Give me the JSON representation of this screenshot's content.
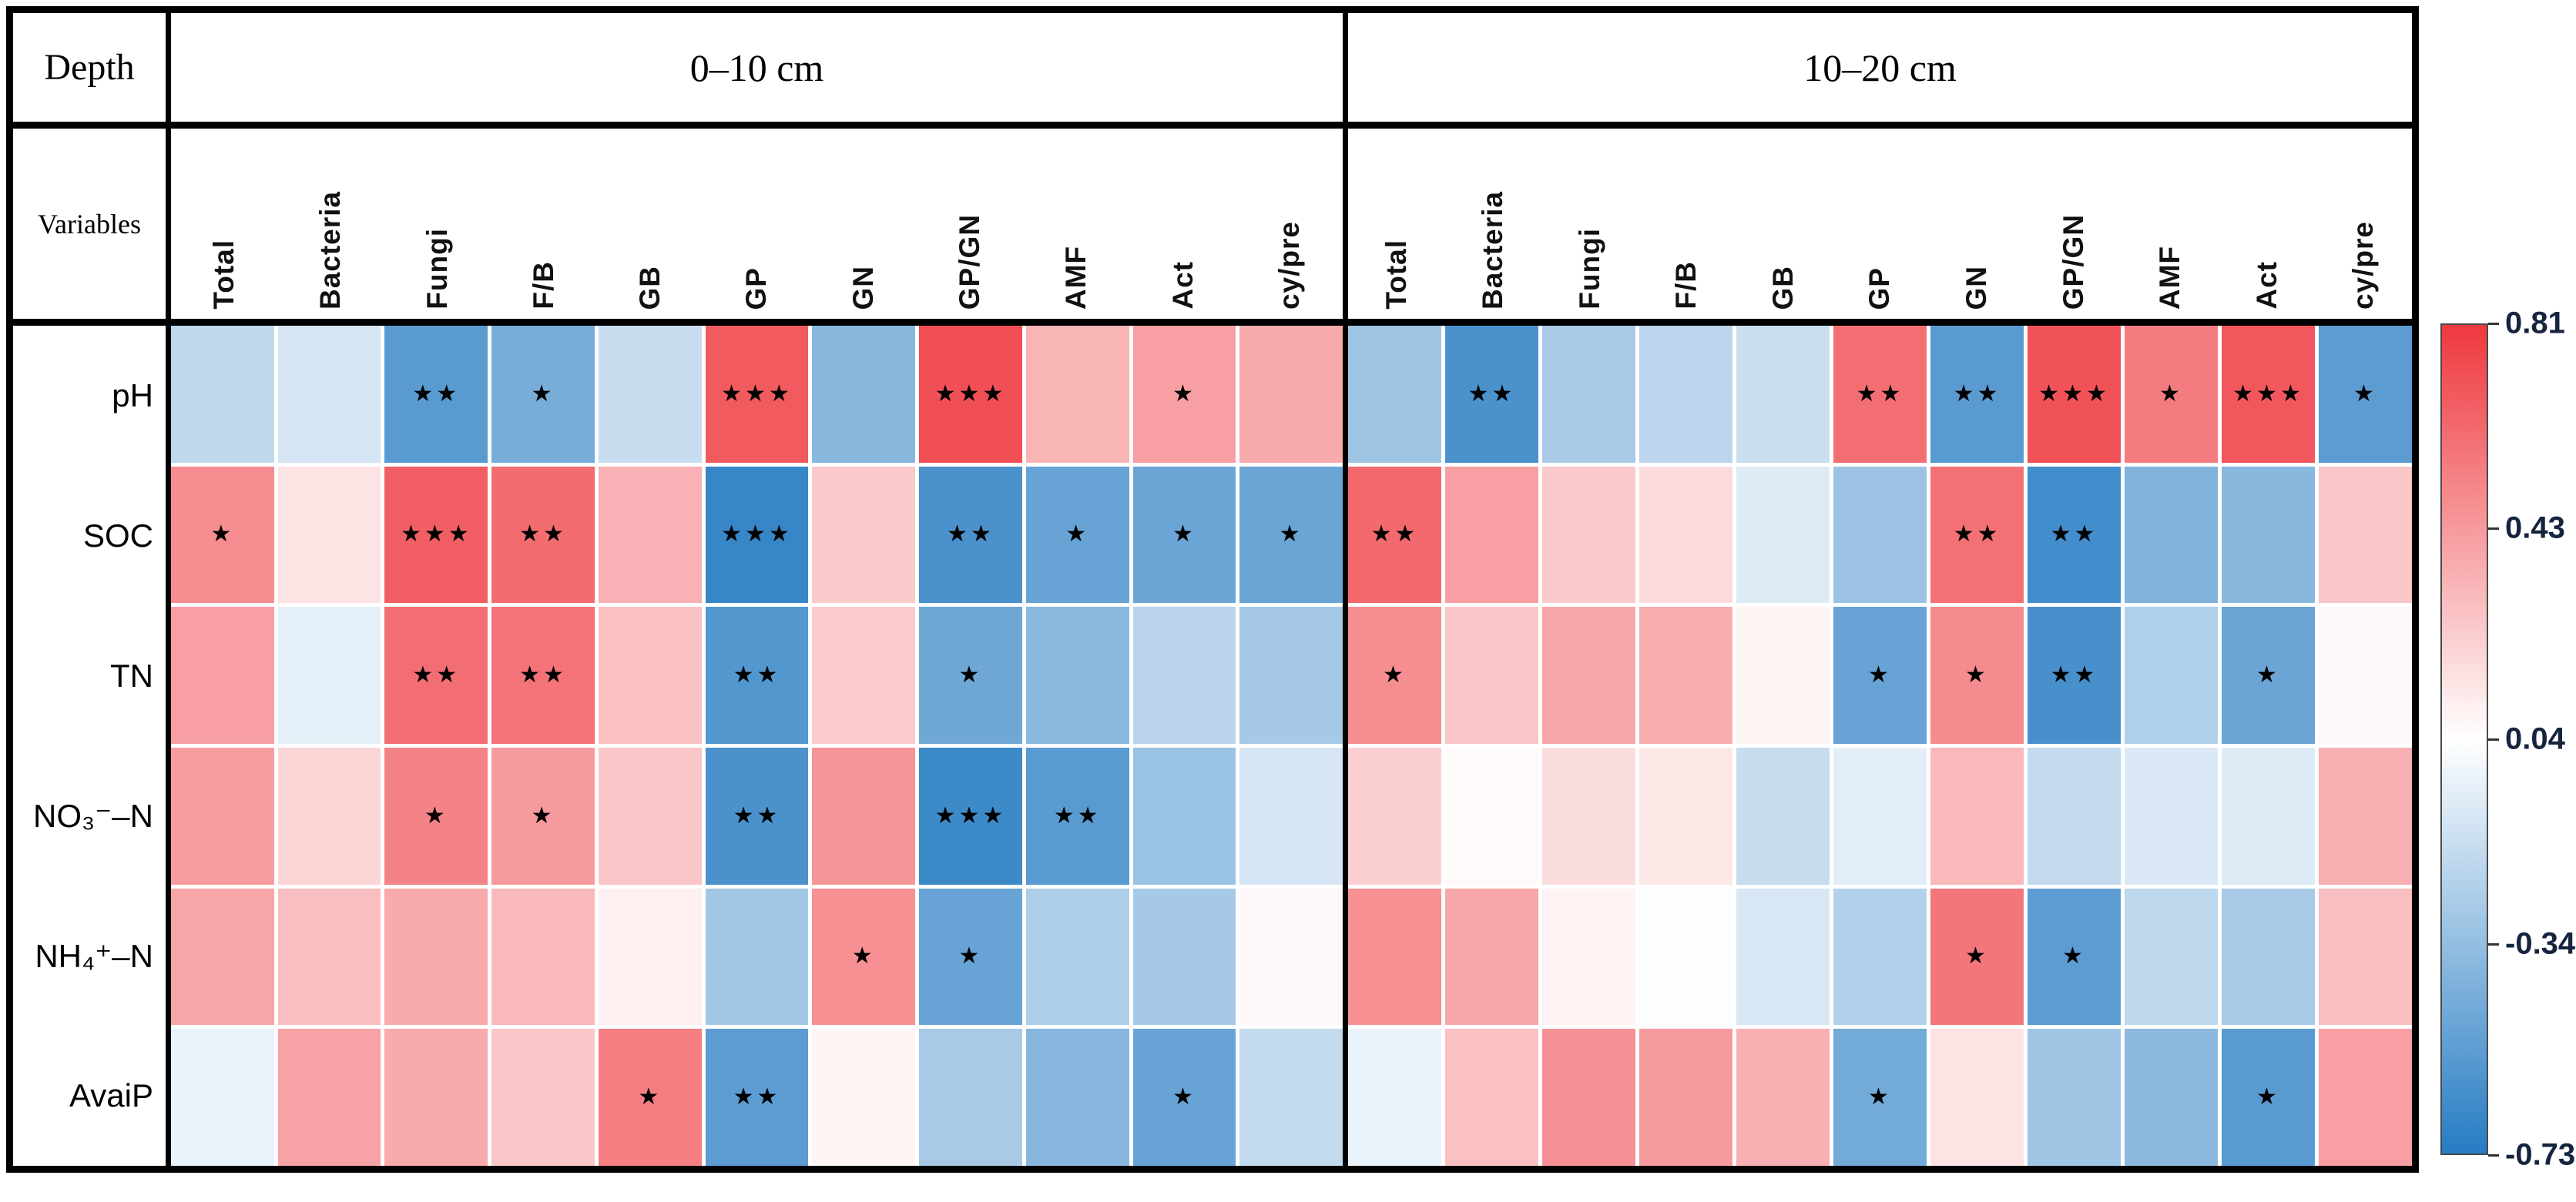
{
  "figure": {
    "depth_label": "Depth",
    "variables_label": "Variables",
    "star_glyph": "★"
  },
  "colorbar": {
    "ticks": [
      "0.81",
      "0.43",
      "0.04",
      "-0.34",
      "-0.73"
    ],
    "tick_values": [
      0.81,
      0.43,
      0.04,
      -0.34,
      -0.73
    ],
    "max": 0.81,
    "mid": 0.04,
    "min": -0.73,
    "max_color": "#EE383E",
    "mid_color": "#FFFFFF",
    "min_color": "#267CC3"
  },
  "chart_data": {
    "type": "heatmap",
    "title": "",
    "columns": [
      "Total",
      "Bacteria",
      "Fungi",
      "F/B",
      "GB",
      "GP",
      "GN",
      "GP/GN",
      "AMF",
      "Act",
      "cy/pre"
    ],
    "rows": [
      "pH",
      "SOC",
      "TN",
      "NO₃⁻–N",
      "NH₄⁺–N",
      "AvaiP"
    ],
    "value_range": [
      -0.73,
      0.81
    ],
    "panels": [
      {
        "name": "0–10 cm",
        "values": [
          [
            -0.19,
            -0.11,
            -0.55,
            -0.44,
            -0.16,
            0.68,
            -0.38,
            0.72,
            0.33,
            0.41,
            0.37
          ],
          [
            0.48,
            0.15,
            0.66,
            0.61,
            0.34,
            -0.67,
            0.25,
            -0.6,
            -0.5,
            -0.49,
            -0.49
          ],
          [
            0.41,
            -0.05,
            0.6,
            0.58,
            0.28,
            -0.57,
            0.24,
            -0.47,
            -0.37,
            -0.21,
            -0.28
          ],
          [
            0.42,
            0.2,
            0.52,
            0.43,
            0.26,
            -0.6,
            0.45,
            -0.65,
            -0.55,
            -0.32,
            -0.11
          ],
          [
            0.39,
            0.29,
            0.37,
            0.31,
            0.1,
            -0.29,
            0.47,
            -0.5,
            -0.25,
            -0.28,
            0.07
          ],
          [
            -0.03,
            0.4,
            0.37,
            0.26,
            0.54,
            -0.54,
            0.08,
            -0.27,
            -0.39,
            -0.5,
            -0.18
          ]
        ],
        "stars": [
          [
            "",
            "",
            "**",
            "*",
            "",
            "***",
            "",
            "***",
            "",
            "*",
            ""
          ],
          [
            "*",
            "",
            "***",
            "**",
            "",
            "***",
            "",
            "**",
            "*",
            "*",
            "*"
          ],
          [
            "",
            "",
            "**",
            "**",
            "",
            "**",
            "",
            "*",
            "",
            "",
            ""
          ],
          [
            "",
            "",
            "*",
            "*",
            "",
            "**",
            "",
            "***",
            "**",
            "",
            ""
          ],
          [
            "",
            "",
            "",
            "",
            "",
            "",
            "*",
            "*",
            "",
            "",
            ""
          ],
          [
            "",
            "",
            "",
            "",
            "*",
            "**",
            "",
            "",
            "",
            "*",
            ""
          ]
        ]
      },
      {
        "name": "10–20 cm",
        "values": [
          [
            -0.3,
            -0.6,
            -0.27,
            -0.2,
            -0.15,
            0.6,
            -0.55,
            0.71,
            0.55,
            0.69,
            -0.54
          ],
          [
            0.62,
            0.41,
            0.25,
            0.18,
            -0.08,
            -0.31,
            0.59,
            -0.63,
            -0.41,
            -0.38,
            0.26
          ],
          [
            0.48,
            0.26,
            0.38,
            0.36,
            0.08,
            -0.5,
            0.49,
            -0.61,
            -0.24,
            -0.49,
            0.07
          ],
          [
            0.22,
            0.06,
            0.17,
            0.13,
            -0.16,
            -0.06,
            0.31,
            -0.17,
            -0.09,
            -0.08,
            0.35
          ],
          [
            0.47,
            0.38,
            0.09,
            0.03,
            -0.1,
            -0.23,
            0.57,
            -0.54,
            -0.19,
            -0.27,
            0.29
          ],
          [
            -0.03,
            0.28,
            0.46,
            0.43,
            0.35,
            -0.46,
            0.15,
            -0.3,
            -0.37,
            -0.55,
            0.41
          ]
        ],
        "stars": [
          [
            "",
            "**",
            "",
            "",
            "",
            "**",
            "**",
            "***",
            "*",
            "***",
            "*"
          ],
          [
            "**",
            "",
            "",
            "",
            "",
            "",
            "**",
            "**",
            "",
            "",
            ""
          ],
          [
            "*",
            "",
            "",
            "",
            "",
            "*",
            "*",
            "**",
            "",
            "*",
            ""
          ],
          [
            "",
            "",
            "",
            "",
            "",
            "",
            "",
            "",
            "",
            "",
            ""
          ],
          [
            "",
            "",
            "",
            "",
            "",
            "",
            "*",
            "*",
            "",
            "",
            ""
          ],
          [
            "",
            "",
            "",
            "",
            "",
            "*",
            "",
            "",
            "",
            "*",
            ""
          ]
        ]
      }
    ]
  }
}
